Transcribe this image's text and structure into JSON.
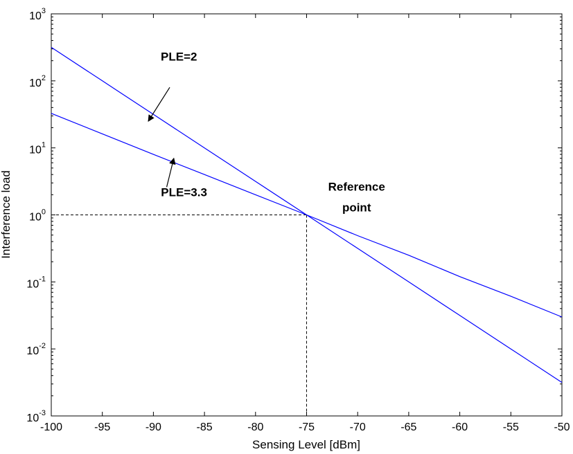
{
  "chart_data": {
    "type": "line",
    "title": "",
    "xlabel": "Sensing Level [dBm]",
    "ylabel": "Interference load",
    "xlim": [
      -100,
      -50
    ],
    "ylim": [
      0.001,
      1000
    ],
    "yscale": "log",
    "x_ticks": [
      -100,
      -95,
      -90,
      -85,
      -80,
      -75,
      -70,
      -65,
      -60,
      -55,
      -50
    ],
    "x_tick_labels": [
      "-100",
      "-95",
      "-90",
      "-85",
      "-80",
      "-75",
      "-70",
      "-65",
      "-60",
      "-55",
      "-50"
    ],
    "y_ticks": [
      0.001,
      0.01,
      0.1,
      1,
      10,
      100,
      1000
    ],
    "y_tick_labels": [
      {
        "base": "10",
        "exp": "-3"
      },
      {
        "base": "10",
        "exp": "-2"
      },
      {
        "base": "10",
        "exp": "-1"
      },
      {
        "base": "10",
        "exp": "0"
      },
      {
        "base": "10",
        "exp": "1"
      },
      {
        "base": "10",
        "exp": "2"
      },
      {
        "base": "10",
        "exp": "3"
      }
    ],
    "series": [
      {
        "name": "PLE=2",
        "color": "#0000ff",
        "x": [
          -100,
          -95,
          -90,
          -85,
          -80,
          -75,
          -70,
          -65,
          -60,
          -55,
          -50
        ],
        "y": [
          316,
          100,
          31.6,
          10,
          3.16,
          1,
          0.316,
          0.1,
          0.0316,
          0.01,
          0.00316
        ]
      },
      {
        "name": "PLE=3.3",
        "color": "#0000ff",
        "x": [
          -100,
          -95,
          -90,
          -85,
          -80,
          -75,
          -70,
          -65,
          -60,
          -55,
          -50
        ],
        "y": [
          32.7,
          16.2,
          8.0,
          4.0,
          2.0,
          1,
          0.49,
          0.25,
          0.12,
          0.061,
          0.03
        ]
      }
    ],
    "reference_point": {
      "x": -75,
      "y": 1
    },
    "annotations": [
      {
        "text": "PLE=2",
        "label_x": -87.5,
        "label_y": 200,
        "arrow_from": [
          -88.4,
          80
        ],
        "arrow_to": [
          -90.5,
          25
        ]
      },
      {
        "text": "PLE=3.3",
        "label_x": -87,
        "label_y": 1.9,
        "arrow_from": [
          -88.7,
          2.6
        ],
        "arrow_to": [
          -88,
          7
        ]
      },
      {
        "text_lines": [
          "Reference",
          "point"
        ],
        "label_x": -70.1,
        "label_y": 2.3
      }
    ]
  }
}
